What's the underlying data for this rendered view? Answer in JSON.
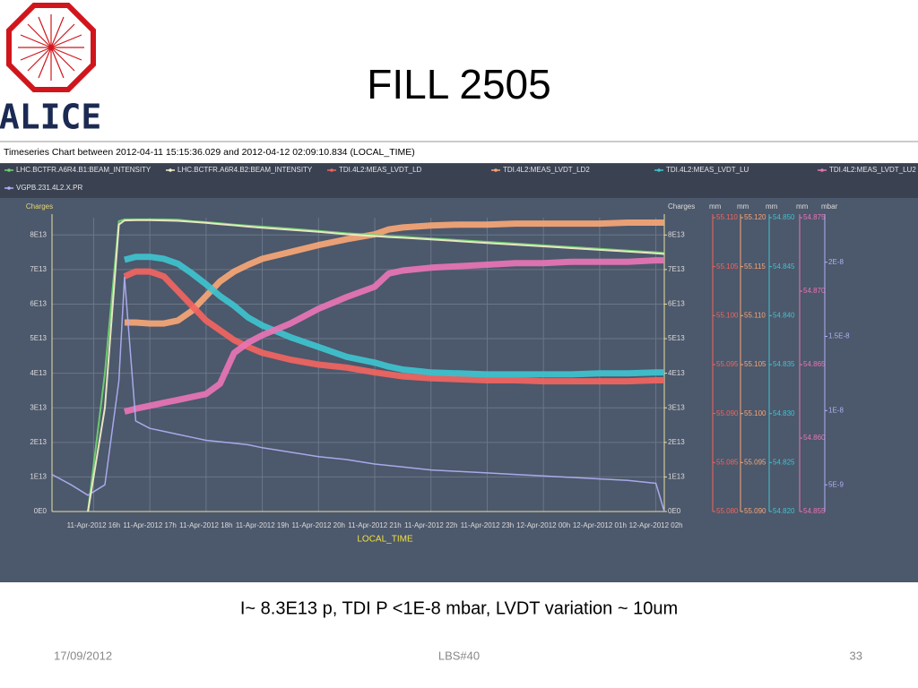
{
  "slide": {
    "title": "FILL 2505",
    "logo_text": "ALICE",
    "caption": "I~ 8.3E13 p, TDI P <1E-8 mbar, LVDT variation ~ 10um",
    "date": "17/09/2012",
    "footer": "LBS#40",
    "page": "33"
  },
  "chart_data": {
    "type": "line",
    "title": "Timeseries Chart between 2012-04-11 15:15:36.029 and 2012-04-12 02:09:10.834 (LOCAL_TIME)",
    "xlabel": "LOCAL_TIME",
    "x": [
      15.26,
      15.6,
      15.9,
      16.2,
      16.45,
      16.55,
      16.75,
      17,
      17.25,
      17.5,
      17.75,
      18,
      18.25,
      18.5,
      18.75,
      19,
      19.5,
      20,
      20.5,
      21,
      21.25,
      21.5,
      22,
      22.5,
      23,
      23.5,
      24,
      24.5,
      25,
      25.5,
      26,
      26.15
    ],
    "xlim": [
      15.26,
      26.15
    ],
    "xticks": [
      {
        "value": 16,
        "label": "11-Apr-2012 16h"
      },
      {
        "value": 17,
        "label": "11-Apr-2012 17h"
      },
      {
        "value": 18,
        "label": "11-Apr-2012 18h"
      },
      {
        "value": 19,
        "label": "11-Apr-2012 19h"
      },
      {
        "value": 20,
        "label": "11-Apr-2012 20h"
      },
      {
        "value": 21,
        "label": "11-Apr-2012 21h"
      },
      {
        "value": 22,
        "label": "11-Apr-2012 22h"
      },
      {
        "value": 23,
        "label": "11-Apr-2012 23h"
      },
      {
        "value": 24,
        "label": "12-Apr-2012 00h"
      },
      {
        "value": 25,
        "label": "12-Apr-2012 01h"
      },
      {
        "value": 26,
        "label": "12-Apr-2012 02h"
      }
    ],
    "ylabel": "Charges",
    "ylim": [
      0,
      85000000000000.0
    ],
    "yticks": [
      {
        "value": 0,
        "label": "0E0"
      },
      {
        "value": 10000000000000.0,
        "label": "1E13"
      },
      {
        "value": 20000000000000.0,
        "label": "2E13"
      },
      {
        "value": 30000000000000.0,
        "label": "3E13"
      },
      {
        "value": 40000000000000.0,
        "label": "4E13"
      },
      {
        "value": 50000000000000.0,
        "label": "5E13"
      },
      {
        "value": 60000000000000.0,
        "label": "6E13"
      },
      {
        "value": 70000000000000.0,
        "label": "7E13"
      },
      {
        "value": 80000000000000.0,
        "label": "8E13"
      }
    ],
    "y2label": "Charges",
    "y2lim": [
      0,
      85000000000000.0
    ],
    "y2ticks": [
      {
        "value": 0,
        "label": "0E0"
      },
      {
        "value": 10000000000000.0,
        "label": "1E13"
      },
      {
        "value": 20000000000000.0,
        "label": "2E13"
      },
      {
        "value": 30000000000000.0,
        "label": "3E13"
      },
      {
        "value": 40000000000000.0,
        "label": "4E13"
      },
      {
        "value": 50000000000000.0,
        "label": "5E13"
      },
      {
        "value": 60000000000000.0,
        "label": "6E13"
      },
      {
        "value": 70000000000000.0,
        "label": "7E13"
      },
      {
        "value": 80000000000000.0,
        "label": "8E13"
      }
    ],
    "y3label": "mm",
    "y3lim": [
      55.08,
      55.11
    ],
    "y3ticks": [
      {
        "value": 55.08,
        "label": "55.080"
      },
      {
        "value": 55.085,
        "label": "55.085"
      },
      {
        "value": 55.09,
        "label": "55.090"
      },
      {
        "value": 55.095,
        "label": "55.095"
      },
      {
        "value": 55.1,
        "label": "55.100"
      },
      {
        "value": 55.105,
        "label": "55.105"
      },
      {
        "value": 55.11,
        "label": "55.110"
      }
    ],
    "y4label": "mm",
    "y4lim": [
      55.09,
      55.12
    ],
    "y4ticks": [
      {
        "value": 55.09,
        "label": "55.090"
      },
      {
        "value": 55.095,
        "label": "55.095"
      },
      {
        "value": 55.1,
        "label": "55.100"
      },
      {
        "value": 55.105,
        "label": "55.105"
      },
      {
        "value": 55.11,
        "label": "55.110"
      },
      {
        "value": 55.115,
        "label": "55.115"
      },
      {
        "value": 55.12,
        "label": "55.120"
      }
    ],
    "y5label": "mm",
    "y5lim": [
      54.82,
      54.85
    ],
    "y5ticks": [
      {
        "value": 54.82,
        "label": "54.820"
      },
      {
        "value": 54.825,
        "label": "54.825"
      },
      {
        "value": 54.83,
        "label": "54.830"
      },
      {
        "value": 54.835,
        "label": "54.835"
      },
      {
        "value": 54.84,
        "label": "54.840"
      },
      {
        "value": 54.845,
        "label": "54.845"
      },
      {
        "value": 54.85,
        "label": "54.850"
      }
    ],
    "y6label": "mm",
    "y6lim": [
      54.855,
      54.875
    ],
    "y6ticks": [
      {
        "value": 54.855,
        "label": "54.855"
      },
      {
        "value": 54.86,
        "label": "54.860"
      },
      {
        "value": 54.865,
        "label": "54.865"
      },
      {
        "value": 54.87,
        "label": "54.870"
      },
      {
        "value": 54.875,
        "label": "54.875"
      }
    ],
    "y7label": "mbar",
    "y7lim": [
      3.2e-09,
      2.3e-08
    ],
    "y7ticks": [
      {
        "value": 5e-09,
        "label": "5E-9"
      },
      {
        "value": 1e-08,
        "label": "1E-8"
      },
      {
        "value": 1.5e-08,
        "label": "1.5E-8"
      },
      {
        "value": 2e-08,
        "label": "2E-8"
      }
    ],
    "grid": true,
    "series": [
      {
        "name": "LHC.BCTFR.A6R4.B1:BEAM_INTENSITY",
        "color": "#6fd36f",
        "axis": "y",
        "values": [
          null,
          null,
          0,
          40000000000000.0,
          84000000000000.0,
          84500000000000.0,
          84500000000000.0,
          84500000000000.0,
          84500000000000.0,
          84400000000000.0,
          84000000000000.0,
          83700000000000.0,
          83400000000000.0,
          83000000000000.0,
          82700000000000.0,
          82400000000000.0,
          81800000000000.0,
          81200000000000.0,
          80500000000000.0,
          80000000000000.0,
          79700000000000.0,
          79500000000000.0,
          79000000000000.0,
          78500000000000.0,
          78000000000000.0,
          77500000000000.0,
          77000000000000.0,
          76500000000000.0,
          76000000000000.0,
          75500000000000.0,
          75000000000000.0,
          74800000000000.0
        ]
      },
      {
        "name": "LHC.BCTFR.A6R4.B2:BEAM_INTENSITY",
        "color": "#f3f0c8",
        "axis": "y",
        "values": [
          null,
          null,
          0,
          30000000000000.0,
          83000000000000.0,
          84200000000000.0,
          84300000000000.0,
          84300000000000.0,
          84200000000000.0,
          84100000000000.0,
          83800000000000.0,
          83500000000000.0,
          83100000000000.0,
          82800000000000.0,
          82400000000000.0,
          82100000000000.0,
          81500000000000.0,
          80900000000000.0,
          80200000000000.0,
          79700000000000.0,
          79400000000000.0,
          79200000000000.0,
          78700000000000.0,
          78200000000000.0,
          77700000000000.0,
          77200000000000.0,
          76700000000000.0,
          76200000000000.0,
          75700000000000.0,
          75200000000000.0,
          74700000000000.0,
          74500000000000.0
        ]
      },
      {
        "name": "TDI.4L2:MEAS_LVDT_LD",
        "color": "#f2645f",
        "axis": "y3",
        "values": [
          null,
          null,
          null,
          null,
          null,
          55.104,
          55.1045,
          55.1045,
          55.104,
          55.1025,
          55.101,
          55.0995,
          55.0985,
          55.0975,
          55.0968,
          55.0962,
          55.0955,
          55.095,
          55.0947,
          55.0942,
          55.094,
          55.0938,
          55.0936,
          55.0935,
          55.0934,
          55.0934,
          55.0933,
          55.0933,
          55.0933,
          55.0933,
          55.0934,
          55.0934
        ]
      },
      {
        "name": "TDI.4L2:MEAS_LVDT_LD2",
        "color": "#f7a676",
        "axis": "y4",
        "values": [
          null,
          null,
          null,
          null,
          null,
          55.1093,
          55.1093,
          55.1092,
          55.1092,
          55.1095,
          55.1105,
          55.112,
          55.1135,
          55.1145,
          55.1152,
          55.1158,
          55.1165,
          55.1172,
          55.1178,
          55.1183,
          55.1188,
          55.119,
          55.1192,
          55.1193,
          55.1193,
          55.1194,
          55.1194,
          55.1194,
          55.1194,
          55.1195,
          55.1195,
          55.1195
        ]
      },
      {
        "name": "TDI.4L2:MEAS_LVDT_LU",
        "color": "#3ec3cf",
        "axis": "y5",
        "values": [
          null,
          null,
          null,
          null,
          null,
          54.8457,
          54.846,
          54.846,
          54.8458,
          54.8453,
          54.8443,
          54.8432,
          54.842,
          54.841,
          54.8398,
          54.839,
          54.8378,
          54.8368,
          54.8358,
          54.8352,
          54.8348,
          54.8345,
          54.8342,
          54.8341,
          54.834,
          54.834,
          54.834,
          54.834,
          54.8341,
          54.8341,
          54.8342,
          54.8342
        ]
      },
      {
        "name": "TDI.4L2:MEAS_LVDT_LU2",
        "color": "#e874b6",
        "axis": "y6",
        "values": [
          null,
          null,
          null,
          null,
          null,
          54.8618,
          54.862,
          54.8622,
          54.8624,
          54.8626,
          54.8628,
          54.863,
          54.8637,
          54.8658,
          54.8665,
          54.867,
          54.8678,
          54.8688,
          54.8696,
          54.8703,
          54.8712,
          54.8714,
          54.8716,
          54.8717,
          54.8718,
          54.8719,
          54.8719,
          54.872,
          54.872,
          54.872,
          54.8721,
          54.8721
        ]
      },
      {
        "name": "VGPB.231.4L2.X.PR",
        "color": "#b0b0f4",
        "axis": "y7",
        "values": [
          5.7e-09,
          5e-09,
          4.3e-09,
          5e-09,
          1.2e-08,
          1.9e-08,
          9.3e-09,
          8.8e-09,
          8.6e-09,
          8.4e-09,
          8.2e-09,
          8e-09,
          7.9e-09,
          7.8e-09,
          7.7e-09,
          7.5e-09,
          7.2e-09,
          6.9e-09,
          6.7e-09,
          6.4e-09,
          6.3e-09,
          6.2e-09,
          6e-09,
          5.9e-09,
          5.8e-09,
          5.7e-09,
          5.6e-09,
          5.5e-09,
          5.4e-09,
          5.3e-09,
          5.1e-09,
          3.2e-09
        ]
      }
    ]
  }
}
